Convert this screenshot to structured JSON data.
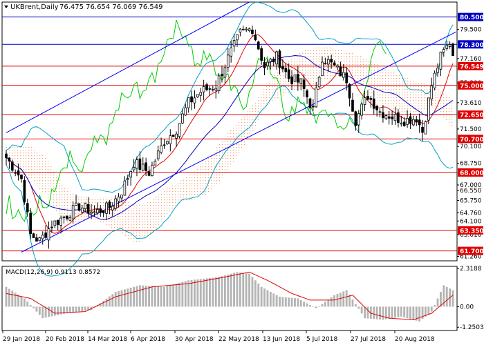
{
  "chart_data": {
    "type": "candlestick",
    "symbol_label": "UKBrent,Daily",
    "ohlc_readout": "76.475 76.654 76.069 76.549",
    "colors": {
      "background": "#ffffff",
      "candle_up": "#ffffff",
      "candle_down": "#000000",
      "level_line": "#0000c0",
      "level_box_red": "#e00000",
      "level_box_blue": "#0000c0",
      "channel": "#0000ff",
      "bollinger": "#00a0c8",
      "ma_fast": "#e00000",
      "ma_slow": "#0000c0",
      "chikou": "#00cc00",
      "cloud": "#f0a070",
      "macd_hist": "#b4b4b4",
      "macd_signal": "#e00000"
    },
    "y_ticks": [
      "79.500",
      "77.160",
      "75.200",
      "73.610",
      "71.500",
      "70.100",
      "68.750",
      "67.000",
      "66.550",
      "65.750",
      "64.760",
      "64.100",
      "63.010",
      "61.260"
    ],
    "x_ticks": [
      "29 Jan 2018",
      "20 Feb 2018",
      "14 Mar 2018",
      "6 Apr 2018",
      "30 Apr 2018",
      "22 May 2018",
      "13 Jun 2018",
      "5 Jul 2018",
      "27 Jul 2018",
      "20 Aug 2018"
    ],
    "levels": [
      {
        "label": "80.500",
        "price": 80.5,
        "color": "blue"
      },
      {
        "label": "78.300",
        "price": 78.3,
        "color": "blue"
      },
      {
        "label": "76.549",
        "price": 76.549,
        "color": "red"
      },
      {
        "label": "75.000",
        "price": 75.0,
        "color": "red"
      },
      {
        "label": "72.650",
        "price": 72.65,
        "color": "red"
      },
      {
        "label": "70.700",
        "price": 70.7,
        "color": "red"
      },
      {
        "label": "68.000",
        "price": 68.0,
        "color": "red"
      },
      {
        "label": "63.350",
        "price": 63.35,
        "color": "red"
      },
      {
        "label": "61.700",
        "price": 61.7,
        "color": "red"
      }
    ],
    "price_range": [
      60.9,
      81.7
    ],
    "bars": 148,
    "macd": {
      "label": "MACD(12,26,9) 0.9113 0.8572",
      "y_ticks": [
        "2.3188",
        "0.00",
        "-1.2503"
      ],
      "range": [
        -1.45,
        2.45
      ],
      "anchors_hist": [
        [
          0,
          1.2
        ],
        [
          6,
          0.5
        ],
        [
          12,
          -0.7
        ],
        [
          20,
          -0.4
        ],
        [
          28,
          -0.2
        ],
        [
          36,
          0.9
        ],
        [
          44,
          1.3
        ],
        [
          52,
          1.2
        ],
        [
          60,
          1.6
        ],
        [
          70,
          1.8
        ],
        [
          76,
          2.1
        ],
        [
          80,
          2.0
        ],
        [
          84,
          1.2
        ],
        [
          90,
          0.6
        ],
        [
          96,
          0.5
        ],
        [
          102,
          -0.1
        ],
        [
          108,
          0.7
        ],
        [
          112,
          1.0
        ],
        [
          118,
          -0.7
        ],
        [
          124,
          -0.8
        ],
        [
          130,
          -0.6
        ],
        [
          136,
          -0.9
        ],
        [
          140,
          -0.3
        ],
        [
          144,
          1.3
        ],
        [
          148,
          0.9
        ]
      ],
      "anchors_signal": [
        [
          0,
          0.8
        ],
        [
          8,
          0.5
        ],
        [
          16,
          -0.4
        ],
        [
          26,
          -0.3
        ],
        [
          36,
          0.6
        ],
        [
          48,
          1.2
        ],
        [
          60,
          1.4
        ],
        [
          72,
          1.8
        ],
        [
          80,
          2.1
        ],
        [
          86,
          1.6
        ],
        [
          94,
          0.8
        ],
        [
          100,
          0.4
        ],
        [
          108,
          0.4
        ],
        [
          114,
          0.7
        ],
        [
          120,
          -0.4
        ],
        [
          126,
          -0.7
        ],
        [
          134,
          -0.8
        ],
        [
          140,
          -0.4
        ],
        [
          148,
          0.86
        ]
      ]
    },
    "price_anchors": [
      [
        0,
        69.2
      ],
      [
        5,
        67.5
      ],
      [
        8,
        63.0
      ],
      [
        11,
        62.5
      ],
      [
        15,
        63.8
      ],
      [
        20,
        64.6
      ],
      [
        24,
        65.3
      ],
      [
        29,
        64.8
      ],
      [
        34,
        65.2
      ],
      [
        38,
        66.5
      ],
      [
        42,
        68.8
      ],
      [
        47,
        68.0
      ],
      [
        52,
        70.5
      ],
      [
        56,
        71.5
      ],
      [
        60,
        73.6
      ],
      [
        64,
        74.5
      ],
      [
        69,
        75.0
      ],
      [
        73,
        77.2
      ],
      [
        77,
        79.2
      ],
      [
        81,
        79.6
      ],
      [
        85,
        76.5
      ],
      [
        89,
        77.3
      ],
      [
        93,
        75.6
      ],
      [
        97,
        75.2
      ],
      [
        101,
        73.0
      ],
      [
        104,
        77.3
      ],
      [
        108,
        76.5
      ],
      [
        112,
        75.5
      ],
      [
        115,
        72.2
      ],
      [
        119,
        74.2
      ],
      [
        123,
        72.9
      ],
      [
        127,
        72.5
      ],
      [
        131,
        72.2
      ],
      [
        135,
        72.4
      ],
      [
        137,
        71.3
      ],
      [
        140,
        75.0
      ],
      [
        143,
        77.3
      ],
      [
        146,
        78.5
      ],
      [
        148,
        76.549
      ]
    ],
    "channel_upper": [
      [
        0,
        71.2
      ],
      [
        80,
        81.7
      ]
    ],
    "channel_lower": [
      [
        5,
        61.6
      ],
      [
        148,
        79.3
      ]
    ]
  }
}
